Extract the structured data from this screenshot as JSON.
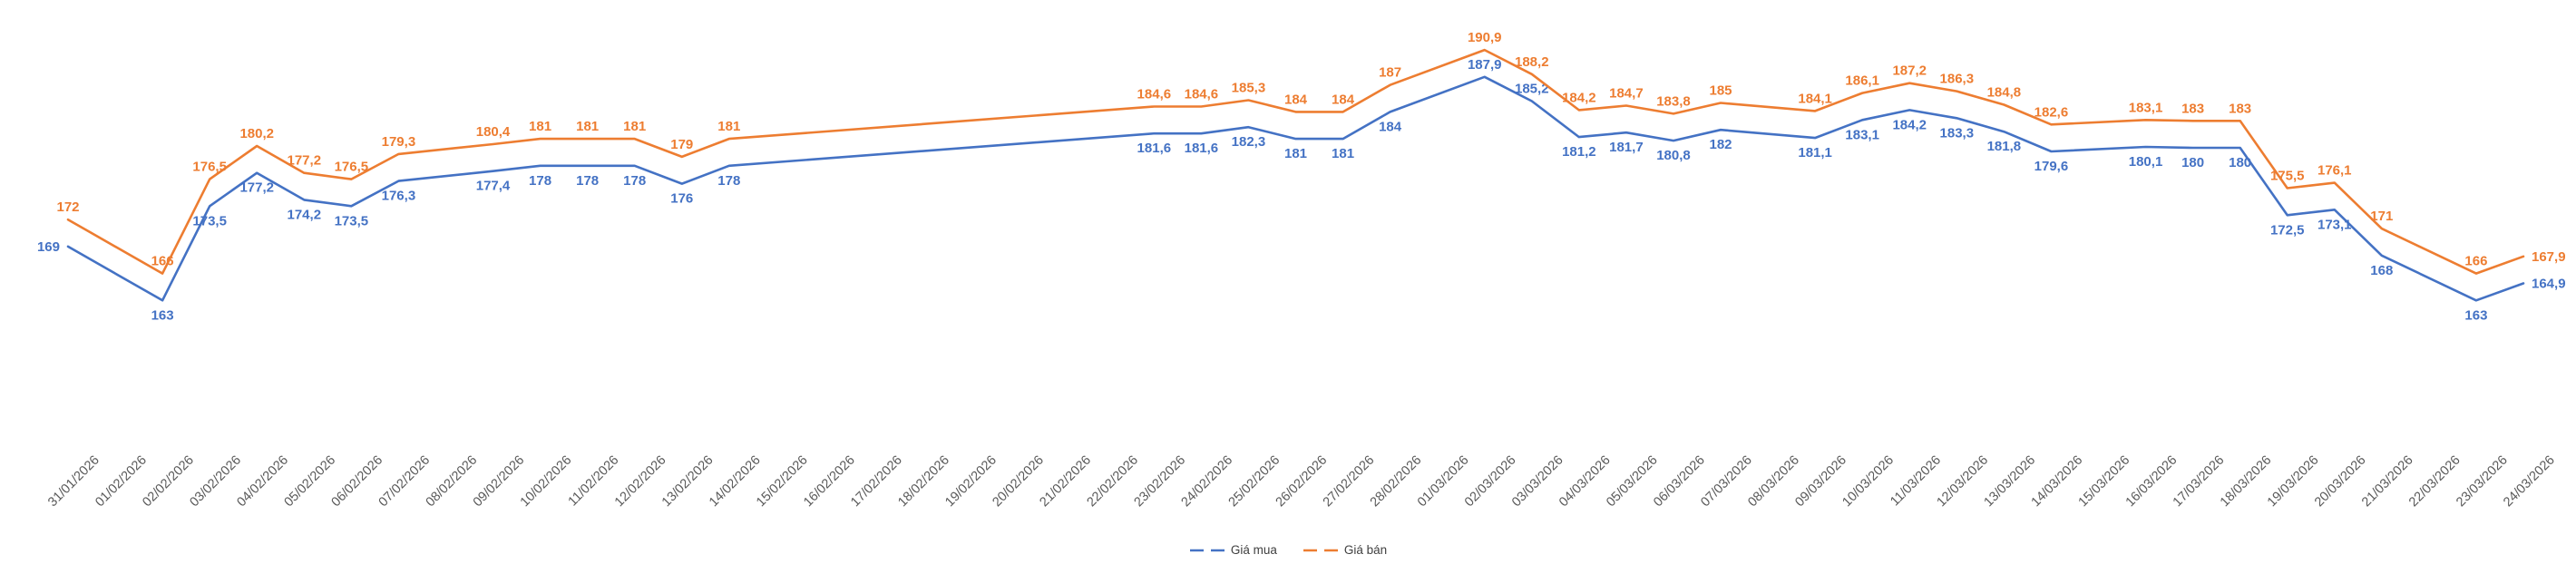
{
  "chart_data": {
    "type": "line",
    "title": "",
    "x": [
      "31/01/2026",
      "01/02/2026",
      "02/02/2026",
      "03/02/2026",
      "04/02/2026",
      "05/02/2026",
      "06/02/2026",
      "07/02/2026",
      "08/02/2026",
      "09/02/2026",
      "10/02/2026",
      "11/02/2026",
      "12/02/2026",
      "13/02/2026",
      "14/02/2026",
      "15/02/2026",
      "16/02/2026",
      "17/02/2026",
      "18/02/2026",
      "19/02/2026",
      "20/02/2026",
      "21/02/2026",
      "22/02/2026",
      "23/02/2026",
      "24/02/2026",
      "25/02/2026",
      "26/02/2026",
      "27/02/2026",
      "28/02/2026",
      "01/03/2026",
      "02/03/2026",
      "03/03/2026",
      "04/03/2026",
      "05/03/2026",
      "06/03/2026",
      "07/03/2026",
      "08/03/2026",
      "09/03/2026",
      "10/03/2026",
      "11/03/2026",
      "12/03/2026",
      "13/03/2026",
      "14/03/2026",
      "15/03/2026",
      "16/03/2026",
      "17/03/2026",
      "18/03/2026",
      "19/03/2026",
      "20/03/2026",
      "21/03/2026",
      "22/03/2026",
      "23/03/2026",
      "24/03/2026"
    ],
    "series": [
      {
        "name": "Giá mua",
        "color": "#4472C4",
        "values": [
          169,
          null,
          163,
          173.5,
          177.2,
          174.2,
          173.5,
          176.3,
          null,
          177.4,
          178,
          178,
          178,
          176,
          178,
          null,
          null,
          null,
          null,
          null,
          null,
          null,
          null,
          181.6,
          181.6,
          182.3,
          181,
          181,
          184,
          null,
          187.9,
          185.2,
          181.2,
          181.7,
          180.8,
          182,
          null,
          181.1,
          183.1,
          184.2,
          183.3,
          181.8,
          179.6,
          null,
          180.1,
          180,
          180,
          172.5,
          173.1,
          168,
          null,
          163,
          164.9
        ]
      },
      {
        "name": "Giá bán",
        "color": "#ED7D31",
        "values": [
          172,
          null,
          166,
          176.5,
          180.2,
          177.2,
          176.5,
          179.3,
          null,
          180.4,
          181,
          181,
          181,
          179,
          181,
          null,
          null,
          null,
          null,
          null,
          null,
          null,
          null,
          184.6,
          184.6,
          185.3,
          184,
          184,
          187,
          null,
          190.9,
          188.2,
          184.2,
          184.7,
          183.8,
          185,
          null,
          184.1,
          186.1,
          187.2,
          186.3,
          184.8,
          182.6,
          null,
          183.1,
          183,
          183,
          175.5,
          176.1,
          171,
          null,
          166,
          167.9
        ]
      }
    ],
    "xlabel": "",
    "ylabel": "",
    "ylim": [
      150,
      195
    ],
    "grid": false,
    "axes_visible": false,
    "data_labels_visible": true,
    "decimal_separator": ",",
    "legend_position": "bottom-center",
    "x_tick_label_color": "#595959",
    "x_tick_label_rotation": -45,
    "background_color": "#FFFFFF"
  }
}
